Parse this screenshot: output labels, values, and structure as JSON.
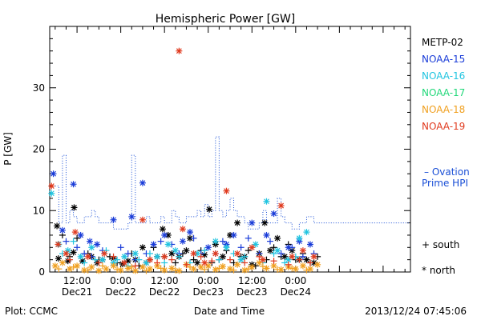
{
  "chart_data": {
    "type": "scatter",
    "title": "Hemispheric Power [GW]",
    "ylabel": "P [GW]",
    "xlabel": "Date and Time",
    "ylim": [
      0,
      40
    ],
    "yticks": [
      0,
      10,
      20,
      30
    ],
    "x_unit": "hours since 2013-12-20 00:00 UTC",
    "xlim": [
      4.5,
      103.5
    ],
    "xticks": [
      {
        "x": 12,
        "time": "12:00",
        "date": "Dec21"
      },
      {
        "x": 24,
        "time": "0:00",
        "date": "Dec22"
      },
      {
        "x": 36,
        "time": "12:00",
        "date": "Dec22"
      },
      {
        "x": 48,
        "time": "0:00",
        "date": "Dec23"
      },
      {
        "x": 60,
        "time": "12:00",
        "date": "Dec23"
      },
      {
        "x": 72,
        "time": "0:00",
        "date": "Dec24"
      }
    ],
    "footer_left": "Plot: CCMC",
    "footer_right": "2013/12/24 07:45:06",
    "symbol_legend": {
      "south_label": "+ south",
      "north_label": "* north"
    },
    "ovation_label": {
      "line1": "– Ovation",
      "line2": "Prime HPI",
      "color": "#1a4fd6"
    },
    "series": [
      {
        "name": "METP-02",
        "color": "#000000",
        "north": [
          [
            6.5,
            7.5
          ],
          [
            6.9,
            2.2
          ],
          [
            9.5,
            1.8
          ],
          [
            11,
            3.2
          ],
          [
            11.2,
            10.5
          ],
          [
            13.5,
            1.8
          ],
          [
            16,
            2.5
          ],
          [
            17.5,
            1.5
          ],
          [
            19,
            2
          ],
          [
            22,
            2.2
          ],
          [
            24.5,
            1.3
          ],
          [
            26,
            1.8
          ],
          [
            28,
            2
          ],
          [
            30,
            4
          ],
          [
            31,
            1.5
          ],
          [
            34,
            2.5
          ],
          [
            35.5,
            7
          ],
          [
            37,
            6
          ],
          [
            38,
            3
          ],
          [
            40,
            2.5
          ],
          [
            42,
            3.5
          ],
          [
            43,
            5.5
          ],
          [
            45,
            1.5
          ],
          [
            47,
            2.8
          ],
          [
            48.3,
            10.2
          ],
          [
            50,
            4.5
          ],
          [
            52,
            2.5
          ],
          [
            54,
            6
          ],
          [
            56,
            8
          ],
          [
            58,
            2.5
          ],
          [
            60,
            1.2
          ],
          [
            62,
            3
          ],
          [
            63.5,
            8
          ],
          [
            65,
            3.5
          ],
          [
            67,
            5.5
          ],
          [
            69,
            2.5
          ],
          [
            71,
            3.5
          ],
          [
            73,
            2
          ],
          [
            75,
            2
          ],
          [
            77,
            1.5
          ]
        ],
        "south": [
          [
            8,
            6
          ],
          [
            10,
            2.5
          ],
          [
            12,
            5.5
          ],
          [
            15,
            3
          ],
          [
            18,
            2
          ],
          [
            21,
            2.5
          ],
          [
            23,
            1.5
          ],
          [
            27,
            3
          ],
          [
            29,
            1
          ],
          [
            32,
            2
          ],
          [
            33,
            4
          ],
          [
            36,
            2.5
          ],
          [
            39,
            1.5
          ],
          [
            41,
            3
          ],
          [
            44,
            2
          ],
          [
            46,
            3.5
          ],
          [
            49,
            1.5
          ],
          [
            51,
            2
          ],
          [
            53,
            3.5
          ],
          [
            55,
            1.5
          ],
          [
            57,
            2.5
          ],
          [
            59,
            3.5
          ],
          [
            61,
            1
          ],
          [
            64,
            2
          ],
          [
            66,
            4
          ],
          [
            68,
            2.5
          ],
          [
            70,
            4.5
          ],
          [
            72,
            2
          ],
          [
            74,
            3
          ],
          [
            76,
            1.5
          ],
          [
            78,
            2.5
          ]
        ]
      },
      {
        "name": "NOAA-15",
        "color": "#1a3cd8",
        "north": [
          [
            5.5,
            16
          ],
          [
            8,
            6.8
          ],
          [
            11,
            14.3
          ],
          [
            13,
            6
          ],
          [
            15.5,
            5
          ],
          [
            17.5,
            4.5
          ],
          [
            22,
            8.5
          ],
          [
            27,
            9
          ],
          [
            30,
            14.5
          ],
          [
            33,
            4.5
          ],
          [
            36,
            6
          ],
          [
            41,
            5
          ],
          [
            43,
            6.5
          ],
          [
            48,
            4
          ],
          [
            53,
            4.5
          ],
          [
            55,
            6
          ],
          [
            60,
            8
          ],
          [
            64,
            6
          ],
          [
            66,
            9.5
          ],
          [
            70,
            4
          ],
          [
            73,
            5
          ],
          [
            76,
            4.5
          ]
        ],
        "south": [
          [
            9,
            5
          ],
          [
            12,
            4
          ],
          [
            14,
            3
          ],
          [
            16,
            2.5
          ],
          [
            19,
            3.5
          ],
          [
            24,
            4
          ],
          [
            26,
            3
          ],
          [
            28,
            2
          ],
          [
            31,
            3
          ],
          [
            35,
            5
          ],
          [
            38,
            4.5
          ],
          [
            40,
            3
          ],
          [
            44,
            5.5
          ],
          [
            46,
            3
          ],
          [
            50,
            3
          ],
          [
            52,
            5
          ],
          [
            57,
            4
          ],
          [
            59,
            5.5
          ],
          [
            62,
            3
          ],
          [
            65,
            5
          ],
          [
            68,
            3
          ],
          [
            71,
            4
          ],
          [
            74,
            2.5
          ],
          [
            77,
            3
          ]
        ]
      },
      {
        "name": "NOAA-16",
        "color": "#20c4e0",
        "north": [
          [
            5,
            12.8
          ],
          [
            7,
            4.5
          ],
          [
            9.5,
            3.5
          ],
          [
            13,
            2.5
          ],
          [
            16,
            4
          ],
          [
            19,
            2
          ],
          [
            22,
            1.5
          ],
          [
            25,
            2.5
          ],
          [
            28,
            3
          ],
          [
            31,
            1.5
          ],
          [
            34,
            2.5
          ],
          [
            37,
            4.5
          ],
          [
            39,
            3.5
          ],
          [
            45,
            3
          ],
          [
            50,
            5
          ],
          [
            53,
            4
          ],
          [
            57,
            2
          ],
          [
            61,
            4.5
          ],
          [
            64,
            11.5
          ],
          [
            67,
            3.5
          ],
          [
            70,
            2
          ],
          [
            73,
            5.5
          ],
          [
            75,
            6.5
          ]
        ],
        "south": [
          [
            8,
            3
          ],
          [
            11,
            5
          ],
          [
            14,
            1.5
          ],
          [
            17,
            2
          ],
          [
            20,
            3.5
          ],
          [
            23,
            2
          ],
          [
            26,
            1
          ],
          [
            29,
            2
          ],
          [
            32,
            3
          ],
          [
            36,
            1.5
          ],
          [
            40,
            2.5
          ],
          [
            43,
            1.5
          ],
          [
            47,
            3.5
          ],
          [
            51,
            2
          ],
          [
            55,
            3
          ],
          [
            58,
            2.5
          ],
          [
            63,
            1.5
          ],
          [
            66,
            3
          ],
          [
            69,
            1.5
          ],
          [
            72,
            2.5
          ]
        ]
      },
      {
        "name": "NOAA-17",
        "color": "#22d87a",
        "north": [],
        "south": []
      },
      {
        "name": "NOAA-18",
        "color": "#f0a020",
        "north": [
          [
            6,
            1
          ],
          [
            8,
            1.5
          ],
          [
            10,
            0.5
          ],
          [
            12,
            1
          ],
          [
            14,
            0.3
          ],
          [
            16,
            0.8
          ],
          [
            18,
            0.2
          ],
          [
            20,
            0.5
          ],
          [
            22,
            1
          ],
          [
            24,
            0.3
          ],
          [
            26,
            0.6
          ],
          [
            28,
            0.2
          ],
          [
            30,
            0.8
          ],
          [
            32,
            0.5
          ],
          [
            34,
            1
          ],
          [
            36,
            0.3
          ],
          [
            38,
            0.6
          ],
          [
            40,
            0.2
          ],
          [
            42,
            1.2
          ],
          [
            44,
            0.5
          ],
          [
            46,
            0.8
          ],
          [
            48,
            1
          ],
          [
            50,
            0.4
          ],
          [
            52,
            0.9
          ],
          [
            54,
            0.5
          ],
          [
            56,
            1.2
          ],
          [
            58,
            0.3
          ],
          [
            60,
            0.8
          ],
          [
            62,
            1.5
          ],
          [
            64,
            0.6
          ],
          [
            66,
            1
          ],
          [
            68,
            0.4
          ],
          [
            70,
            0.8
          ],
          [
            72,
            0.5
          ],
          [
            74,
            1
          ],
          [
            76,
            0.5
          ],
          [
            78,
            1.2
          ]
        ],
        "south": [
          [
            7,
            0.5
          ],
          [
            11,
            0.8
          ],
          [
            15,
            0.3
          ],
          [
            19,
            1
          ],
          [
            23,
            0.4
          ],
          [
            27,
            0.8
          ],
          [
            31,
            0.2
          ],
          [
            35,
            0.6
          ],
          [
            39,
            0.3
          ],
          [
            43,
            0.8
          ],
          [
            47,
            0.4
          ],
          [
            51,
            0.6
          ],
          [
            55,
            0.3
          ],
          [
            59,
            0.5
          ],
          [
            63,
            0.9
          ],
          [
            67,
            0.4
          ],
          [
            71,
            0.6
          ],
          [
            75,
            0.3
          ]
        ]
      },
      {
        "name": "NOAA-19",
        "color": "#e03a1e",
        "north": [
          [
            5,
            14
          ],
          [
            6.8,
            4.5
          ],
          [
            9,
            3
          ],
          [
            11.5,
            6.5
          ],
          [
            15,
            2.5
          ],
          [
            19.5,
            3
          ],
          [
            25,
            1.5
          ],
          [
            30,
            8.5
          ],
          [
            32,
            2
          ],
          [
            36,
            2.5
          ],
          [
            40,
            36
          ],
          [
            41,
            7
          ],
          [
            44,
            3
          ],
          [
            47,
            1.5
          ],
          [
            50,
            3
          ],
          [
            53,
            13.2
          ],
          [
            56,
            3
          ],
          [
            60,
            4
          ],
          [
            63,
            2
          ],
          [
            68,
            10.8
          ],
          [
            71,
            2.5
          ],
          [
            74,
            3.5
          ],
          [
            77,
            2.5
          ]
        ],
        "south": [
          [
            10,
            2
          ],
          [
            18,
            1.5
          ],
          [
            22,
            2.5
          ],
          [
            28,
            1
          ],
          [
            34,
            1.5
          ],
          [
            38,
            2
          ],
          [
            42,
            1.2
          ],
          [
            46,
            2.5
          ],
          [
            49,
            1.8
          ],
          [
            54,
            2
          ],
          [
            58,
            1.5
          ],
          [
            62,
            2.5
          ],
          [
            66,
            1.8
          ],
          [
            70,
            1.2
          ],
          [
            73,
            2
          ],
          [
            76,
            1.5
          ]
        ]
      }
    ],
    "ovation_hpi": {
      "color": "#1a4fd6",
      "steps": [
        [
          6,
          14
        ],
        [
          7,
          8
        ],
        [
          8,
          19
        ],
        [
          9,
          8
        ],
        [
          10,
          10
        ],
        [
          11,
          9
        ],
        [
          12,
          8
        ],
        [
          14,
          9
        ],
        [
          16,
          10
        ],
        [
          17,
          9
        ],
        [
          18,
          8
        ],
        [
          21,
          8
        ],
        [
          22,
          7
        ],
        [
          24,
          7
        ],
        [
          26,
          8
        ],
        [
          27,
          19
        ],
        [
          28,
          8
        ],
        [
          30,
          8
        ],
        [
          31,
          9
        ],
        [
          32,
          8
        ],
        [
          34,
          8
        ],
        [
          35,
          9
        ],
        [
          36,
          8
        ],
        [
          38,
          10
        ],
        [
          39,
          9
        ],
        [
          40,
          8
        ],
        [
          42,
          9
        ],
        [
          44,
          9
        ],
        [
          45,
          10
        ],
        [
          46,
          9
        ],
        [
          47,
          11
        ],
        [
          48,
          9
        ],
        [
          49,
          10
        ],
        [
          50,
          22
        ],
        [
          51,
          10
        ],
        [
          52,
          9
        ],
        [
          53,
          10
        ],
        [
          54,
          12
        ],
        [
          55,
          10
        ],
        [
          56,
          9
        ],
        [
          58,
          8
        ],
        [
          59,
          7
        ],
        [
          61,
          7
        ],
        [
          62,
          8
        ],
        [
          63,
          10
        ],
        [
          64,
          8
        ],
        [
          66,
          8
        ],
        [
          67,
          12
        ],
        [
          68,
          9
        ],
        [
          69,
          8
        ],
        [
          71,
          7
        ],
        [
          73,
          8
        ],
        [
          74,
          8
        ],
        [
          75,
          9
        ],
        [
          76,
          9
        ],
        [
          77,
          8
        ],
        [
          78,
          8
        ]
      ]
    }
  }
}
